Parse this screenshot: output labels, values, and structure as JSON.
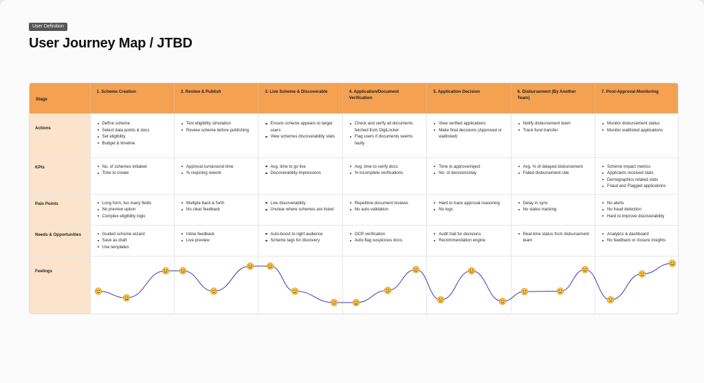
{
  "badge": "User Definition",
  "title": "User Journey Map / JTBD",
  "stage_label": "Stage",
  "stages": [
    "1. Scheme Creation",
    "2. Review & Publish",
    "3. Live Scheme & Discoverable",
    "4. Application/Document Verification",
    "5. Application Decision",
    "6. Disbursement (By Another Team)",
    "7. Post-Approval Monitoring"
  ],
  "rows": [
    {
      "label": "Actions",
      "cells": [
        [
          "Define scheme",
          "Select data points & docs",
          "Set eligibility",
          "Budget & timeline"
        ],
        [
          "Test eligibility simulation",
          "Review scheme before publishing"
        ],
        [
          "Ensure scheme appears to target users",
          "View schemes discoverability stats"
        ],
        [
          "Check and verify all documents fetched from DigiLocker",
          "Flag users if documents seems faulty"
        ],
        [
          "View verified applications",
          "Make final decisions (Approved or waitlisted)"
        ],
        [
          "Notify disbursement team",
          "Track fund transfer"
        ],
        [
          "Monitor disbursement status",
          "Monitor waitlisted applications"
        ]
      ]
    },
    {
      "label": "KPIs",
      "cells": [
        [
          "No. of schemes initiated",
          "Time to create"
        ],
        [
          "Approval turnaround time",
          "% requiring rework"
        ],
        [
          "Avg. time to go live",
          "Discoverability impressions"
        ],
        [
          "Avg. time to verify docs",
          "% incomplete verifications"
        ],
        [
          "Time to approve/reject",
          "No. of decisions/day"
        ],
        [
          "Avg. % of delayed disbursement",
          "Failed disbursement rate"
        ],
        [
          "Scheme impact metrics",
          "Applicants received stats",
          "Demographics related stats",
          "Fraud and Flagged applications"
        ]
      ]
    },
    {
      "label": "Pain Points",
      "cells": [
        [
          "Long form, too many fields",
          "No preview option",
          "Complex eligibility logic"
        ],
        [
          "Multiple back & forth",
          "No clear feedback"
        ],
        [
          "Low discoverability",
          "Unclear where schemes are listed"
        ],
        [
          "Repetitive document reviews",
          "No auto-validation"
        ],
        [
          "Hard to trace approval reasoning",
          "No logs"
        ],
        [
          "Delay in sync",
          "No status tracking"
        ],
        [
          "No alerts",
          "No fraud detection",
          "Hard to improve discoverability"
        ]
      ]
    },
    {
      "label": "Needs & Opportunities",
      "cells": [
        [
          "Guided scheme wizard",
          "Save as draft",
          "Use templates"
        ],
        [
          "Inline feedback",
          "Live preview"
        ],
        [
          "Auto-boost to right audience",
          "Scheme tags for discovery"
        ],
        [
          "OCR verification",
          "Auto-flag suspicious docs"
        ],
        [
          "Audit trail for decisions",
          "Recommendation engine"
        ],
        [
          "Real-time status from disbursement team"
        ],
        [
          "Analytics & dashboard",
          "No feedback or closure insights"
        ]
      ]
    }
  ],
  "feelings_label": "Feelings",
  "feelings": [
    {
      "mood": "neutral",
      "level": 0.29
    },
    {
      "mood": "frustrated",
      "level": 0.12
    },
    {
      "mood": "happy",
      "level": 0.81
    },
    {
      "mood": "happy",
      "level": 0.81
    },
    {
      "mood": "neutral",
      "level": 0.29
    },
    {
      "mood": "happy",
      "level": 0.93
    },
    {
      "mood": "happy",
      "level": 0.93
    },
    {
      "mood": "unhappy",
      "level": 0.29
    },
    {
      "mood": "neutral",
      "level": 0.0
    },
    {
      "mood": "frustrated",
      "level": 0.0
    },
    {
      "mood": "neutral",
      "level": 0.31
    },
    {
      "mood": "happy",
      "level": 0.84
    },
    {
      "mood": "neutral",
      "level": 0.07
    },
    {
      "mood": "happy",
      "level": 0.81
    },
    {
      "mood": "neutral",
      "level": 0.03
    },
    {
      "mood": "neutral",
      "level": 0.28
    },
    {
      "mood": "neutral",
      "level": 0.29
    },
    {
      "mood": "happy",
      "level": 0.84
    },
    {
      "mood": "neutral",
      "level": 0.07
    },
    {
      "mood": "neutral",
      "level": 0.73
    },
    {
      "mood": "happy",
      "level": 1.0
    }
  ],
  "colors": {
    "header_orange": "#f4a152",
    "label_peach": "#fbe3cc",
    "curve": "#3a35a8",
    "emoji_face": "#f6c04a"
  }
}
